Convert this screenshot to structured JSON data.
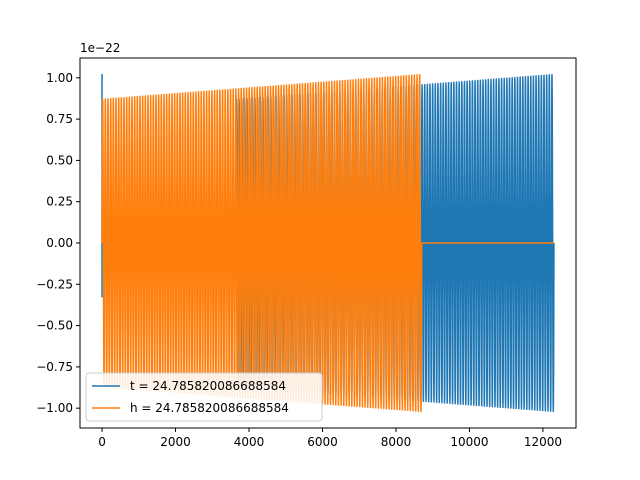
{
  "chart_data": {
    "type": "line",
    "title": "",
    "xlabel": "",
    "ylabel": "",
    "y_scale_label": "1e−22",
    "xlim": [
      -600,
      12900
    ],
    "ylim": [
      -1.12,
      1.12
    ],
    "x_ticks": [
      0,
      2000,
      4000,
      6000,
      8000,
      10000,
      12000
    ],
    "x_tick_labels": [
      "0",
      "2000",
      "4000",
      "6000",
      "8000",
      "10000",
      "12000"
    ],
    "y_ticks": [
      -1.0,
      -0.75,
      -0.5,
      -0.25,
      0.0,
      0.25,
      0.5,
      0.75,
      1.0
    ],
    "y_tick_labels": [
      "−1.00",
      "−0.75",
      "−0.50",
      "−0.25",
      "0.00",
      "0.25",
      "0.50",
      "0.75",
      "1.00"
    ],
    "grid": false,
    "legend_position": "lower-left",
    "series": [
      {
        "name": "t = 24.785820086688584",
        "color": "#1f77b4",
        "segments": [
          {
            "kind": "spike",
            "x": 0,
            "y_start": -0.33,
            "y_peak": 1.02,
            "y_end": 0.0
          },
          {
            "kind": "flat",
            "x_start": 0,
            "x_end": 3640,
            "y": 0.0
          },
          {
            "kind": "oscillation",
            "x_start": 3640,
            "x_end": 12300,
            "cycles": 120,
            "amp_start": 0.87,
            "amp_end": 1.02
          }
        ]
      },
      {
        "name": "h = 24.785820086688584",
        "color": "#ff7f0e",
        "segments": [
          {
            "kind": "oscillation",
            "x_start": 0,
            "x_end": 8700,
            "cycles": 120,
            "amp_start": 0.87,
            "amp_end": 1.02
          },
          {
            "kind": "flat",
            "x_start": 8700,
            "x_end": 12300,
            "y": 0.0
          }
        ]
      }
    ]
  }
}
